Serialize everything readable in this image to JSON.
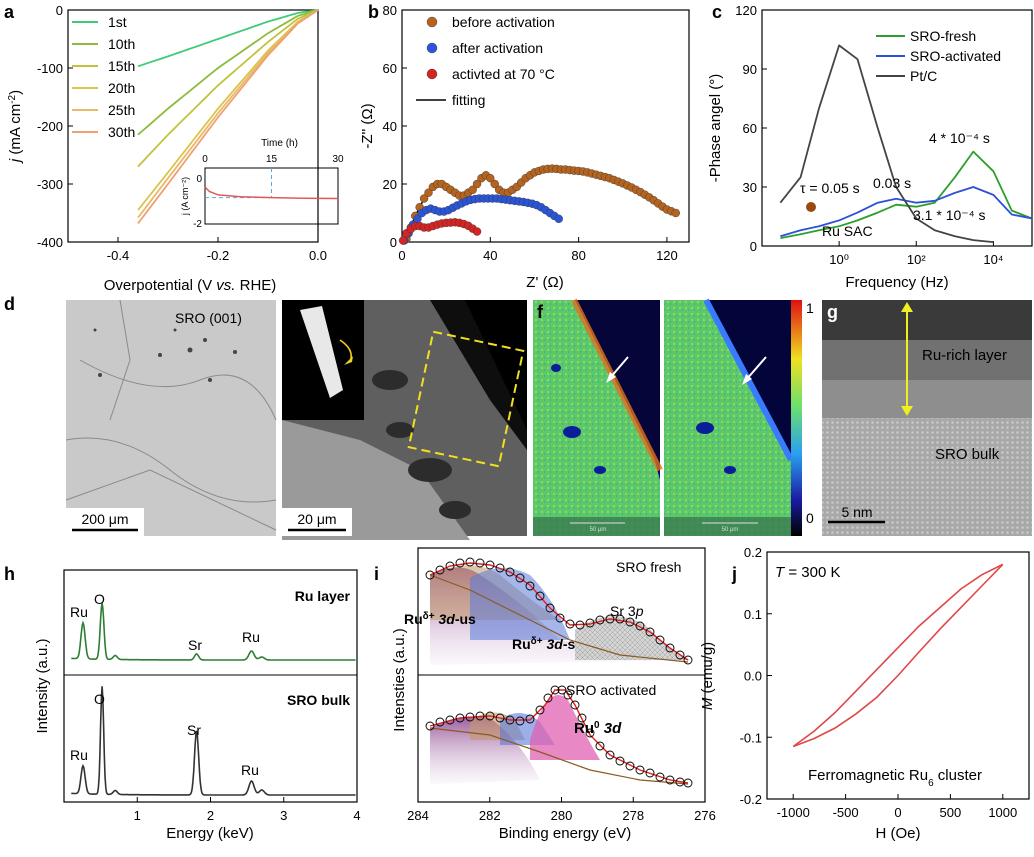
{
  "colors": {
    "a_cycles": [
      "#3dcb7a",
      "#8dbb3c",
      "#c2c23c",
      "#d9c548",
      "#e9b86a",
      "#f0a070"
    ],
    "inset_line": "#e05a5a",
    "inset_dash": "#5aa9d6",
    "b_before": "#b5641f",
    "b_after": "#2a55d6",
    "b_70": "#d42424",
    "c_fresh": "#2aa02a",
    "c_act": "#2e4fd8",
    "c_pt": "#444444",
    "c_dot": "#9a4a10",
    "h_ru": "#2e7d32",
    "h_sro": "#333333",
    "j_loop": "#e04848"
  },
  "panels": {
    "a": {
      "label": "a"
    },
    "b": {
      "label": "b"
    },
    "c": {
      "label": "c"
    },
    "d": {
      "label": "d"
    },
    "f": {
      "label": "f"
    },
    "g": {
      "label": "g"
    },
    "h": {
      "label": "h"
    },
    "i": {
      "label": "i"
    },
    "j": {
      "label": "j"
    }
  },
  "chart_data": [
    {
      "id": "a",
      "type": "line",
      "xlabel": "Overpotential (V vs. RHE)",
      "ylabel": "j (mA cm⁻²)",
      "xlim": [
        -0.5,
        0.0
      ],
      "ylim": [
        -400,
        0
      ],
      "xticks": [
        "-0.4",
        "-0.2",
        "0.0"
      ],
      "yticks": [
        "0",
        "-100",
        "-200",
        "-300",
        "-400"
      ],
      "series": [
        {
          "name": "1st",
          "x": [
            -0.36,
            -0.3,
            -0.2,
            -0.1,
            -0.04,
            0.0
          ],
          "y": [
            -97,
            -80,
            -50,
            -20,
            -5,
            0
          ]
        },
        {
          "name": "10th",
          "x": [
            -0.36,
            -0.3,
            -0.2,
            -0.1,
            -0.04,
            0.0
          ],
          "y": [
            -215,
            -170,
            -100,
            -40,
            -10,
            0
          ]
        },
        {
          "name": "15th",
          "x": [
            -0.36,
            -0.3,
            -0.2,
            -0.1,
            -0.04,
            0.0
          ],
          "y": [
            -270,
            -215,
            -130,
            -55,
            -15,
            0
          ]
        },
        {
          "name": "20th",
          "x": [
            -0.36,
            -0.3,
            -0.2,
            -0.1,
            -0.04,
            0.0
          ],
          "y": [
            -345,
            -280,
            -170,
            -70,
            -20,
            0
          ]
        },
        {
          "name": "25th",
          "x": [
            -0.36,
            -0.3,
            -0.2,
            -0.1,
            -0.04,
            0.0
          ],
          "y": [
            -358,
            -290,
            -178,
            -74,
            -22,
            0
          ]
        },
        {
          "name": "30th",
          "x": [
            -0.36,
            -0.3,
            -0.2,
            -0.1,
            -0.04,
            0.0
          ],
          "y": [
            -368,
            -300,
            -185,
            -78,
            -23,
            0
          ]
        }
      ],
      "inset": {
        "xlabel": "Time (h)",
        "ylabel": "j (A cm⁻²)",
        "xlim": [
          0,
          30
        ],
        "ylim": [
          -2,
          0.5
        ],
        "xticks": [
          "0",
          "15",
          "30"
        ],
        "yticks": [
          "0",
          "-2"
        ],
        "x": [
          0,
          1,
          3,
          8,
          15,
          22,
          30
        ],
        "y": [
          -0.35,
          -0.55,
          -0.7,
          -0.78,
          -0.82,
          -0.85,
          -0.86
        ]
      }
    },
    {
      "id": "b",
      "type": "scatter",
      "xlabel": "Z' (Ω)",
      "ylabel": "-Z'' (Ω)",
      "xlim": [
        0,
        130
      ],
      "ylim": [
        0,
        80
      ],
      "xticks": [
        "0",
        "40",
        "80",
        "120"
      ],
      "yticks": [
        "0",
        "20",
        "40",
        "60",
        "80"
      ],
      "legend": [
        "before activation",
        "after activation",
        "activted at 70 °C",
        "fitting"
      ],
      "series": [
        {
          "name": "before activation",
          "points": [
            [
              2,
              1
            ],
            [
              4,
              5
            ],
            [
              6,
              9
            ],
            [
              8,
              12
            ],
            [
              10,
              15
            ],
            [
              12,
              17
            ],
            [
              14,
              19
            ],
            [
              16,
              20
            ],
            [
              18,
              20
            ],
            [
              20,
              19
            ],
            [
              22,
              18
            ],
            [
              24,
              17
            ],
            [
              26,
              16
            ],
            [
              28,
              16
            ],
            [
              30,
              17
            ],
            [
              32,
              18
            ],
            [
              34,
              20
            ],
            [
              36,
              22
            ],
            [
              38,
              23
            ],
            [
              40,
              22
            ],
            [
              42,
              20
            ],
            [
              44,
              18
            ],
            [
              46,
              17
            ],
            [
              48,
              17
            ],
            [
              50,
              18
            ],
            [
              52,
              19
            ],
            [
              54,
              20.5
            ],
            [
              56,
              22
            ],
            [
              58,
              23
            ],
            [
              60,
              24
            ],
            [
              62,
              24.5
            ],
            [
              64,
              25
            ],
            [
              66,
              25.2
            ],
            [
              68,
              25.3
            ],
            [
              70,
              25.2
            ],
            [
              72,
              25
            ],
            [
              74,
              25
            ],
            [
              76,
              24.8
            ],
            [
              78,
              24.6
            ],
            [
              80,
              24.5
            ],
            [
              82,
              24.3
            ],
            [
              84,
              24
            ],
            [
              86,
              23.6
            ],
            [
              88,
              23.2
            ],
            [
              90,
              22.8
            ],
            [
              92,
              22.4
            ],
            [
              94,
              22
            ],
            [
              96,
              21.4
            ],
            [
              98,
              20.8
            ],
            [
              100,
              20.2
            ],
            [
              102,
              19.5
            ],
            [
              104,
              18.8
            ],
            [
              106,
              18
            ],
            [
              108,
              17.2
            ],
            [
              110,
              16.3
            ],
            [
              112,
              15.4
            ],
            [
              114,
              14.4
            ],
            [
              116,
              13.3
            ],
            [
              118,
              12.2
            ],
            [
              120,
              11.2
            ],
            [
              122,
              10.6
            ],
            [
              124,
              10
            ]
          ]
        },
        {
          "name": "after activation",
          "points": [
            [
              1,
              0.5
            ],
            [
              3,
              3
            ],
            [
              5,
              6
            ],
            [
              7,
              8
            ],
            [
              9,
              10
            ],
            [
              11,
              11
            ],
            [
              13,
              11.5
            ],
            [
              15,
              11
            ],
            [
              17,
              10.5
            ],
            [
              19,
              10.5
            ],
            [
              21,
              11
            ],
            [
              23,
              11.8
            ],
            [
              25,
              12.6
            ],
            [
              27,
              13.3
            ],
            [
              29,
              14
            ],
            [
              31,
              14.5
            ],
            [
              33,
              14.8
            ],
            [
              35,
              15
            ],
            [
              37,
              15
            ],
            [
              39,
              15
            ],
            [
              41,
              15
            ],
            [
              43,
              15
            ],
            [
              45,
              14.8
            ],
            [
              47,
              14.6
            ],
            [
              49,
              14.4
            ],
            [
              51,
              14.2
            ],
            [
              53,
              14
            ],
            [
              55,
              13.8
            ],
            [
              57,
              13.5
            ],
            [
              59,
              13.2
            ],
            [
              61,
              12.7
            ],
            [
              63,
              12
            ],
            [
              65,
              11
            ],
            [
              67,
              10
            ],
            [
              69,
              9
            ],
            [
              71,
              8
            ]
          ]
        },
        {
          "name": "activted at 70 °C",
          "points": [
            [
              0.5,
              0.5
            ],
            [
              2,
              3
            ],
            [
              4,
              4.5
            ],
            [
              6,
              5.5
            ],
            [
              8,
              5.5
            ],
            [
              10,
              5
            ],
            [
              12,
              5
            ],
            [
              14,
              5.5
            ],
            [
              16,
              6
            ],
            [
              18,
              6.4
            ],
            [
              20,
              6.6
            ],
            [
              22,
              6.7
            ],
            [
              24,
              6.8
            ],
            [
              26,
              6.6
            ],
            [
              28,
              6.2
            ],
            [
              30,
              5.6
            ],
            [
              32,
              4.6
            ],
            [
              34,
              3.6
            ]
          ]
        }
      ]
    },
    {
      "id": "c",
      "type": "line",
      "xlabel": "Frequency (Hz)",
      "ylabel": "-Phase angel (°)",
      "xscale": "log",
      "xlim": [
        0.01,
        100000
      ],
      "ylim": [
        0,
        120
      ],
      "xticks": [
        "10⁰",
        "10²",
        "10⁴"
      ],
      "yticks": [
        "0",
        "30",
        "60",
        "90",
        "120"
      ],
      "legend": [
        "SRO-fresh",
        "SRO-activated",
        "Pt/C"
      ],
      "annotations": [
        "4 * 10⁻⁴ s",
        "0.03 s",
        "τ = 0.05 s",
        "3.1 * 10⁻⁴ s",
        "Ru SAC"
      ],
      "series": [
        {
          "name": "SRO-fresh",
          "x": [
            0.03,
            0.1,
            0.3,
            1,
            3,
            10,
            30,
            100,
            300,
            1000,
            3000,
            10000,
            30000,
            100000
          ],
          "y": [
            4,
            6,
            8,
            10,
            13,
            17,
            21,
            20,
            22,
            35,
            48,
            38,
            18,
            14
          ]
        },
        {
          "name": "SRO-activated",
          "x": [
            0.03,
            0.1,
            0.3,
            1,
            3,
            10,
            30,
            100,
            300,
            1000,
            3000,
            10000,
            30000,
            100000
          ],
          "y": [
            5,
            8,
            10,
            13,
            17,
            22,
            24,
            22,
            23,
            27,
            30,
            26,
            16,
            14
          ]
        },
        {
          "name": "Pt/C",
          "x": [
            0.03,
            0.1,
            0.3,
            1,
            3,
            10,
            30,
            100,
            300,
            1000,
            3000,
            10000
          ],
          "y": [
            22,
            35,
            70,
            102,
            95,
            60,
            30,
            14,
            8,
            5,
            3,
            2
          ]
        }
      ]
    },
    {
      "id": "h",
      "type": "line",
      "xlabel": "Energy (keV)",
      "ylabel": "Intensity (a.u.)",
      "xlim": [
        0,
        4
      ],
      "xticks": [
        "1",
        "2",
        "3",
        "4"
      ],
      "series_labels": [
        "Ru layer",
        "SRO bulk"
      ],
      "peak_labels": [
        "Ru",
        "O",
        "Sr",
        "Ru",
        "O",
        "Sr",
        "Ru",
        "Ru"
      ]
    },
    {
      "id": "i",
      "type": "line",
      "xlabel": "Binding energy (eV)",
      "ylabel": "Intensties (a.u.)",
      "xlim": [
        284,
        276
      ],
      "xticks": [
        "284",
        "282",
        "280",
        "278",
        "276"
      ],
      "top_labels": [
        "SRO fresh",
        "Ruδ+ 3d-us",
        "Ruδ+ 3d-s",
        "Sr 3p"
      ],
      "bottom_labels": [
        "SRO activated",
        "Ru⁰ 3d"
      ]
    },
    {
      "id": "j",
      "type": "line",
      "xlabel": "H (Oe)",
      "ylabel": "M (emu/g)",
      "xlim": [
        -1250,
        1250
      ],
      "ylim": [
        -0.2,
        0.2
      ],
      "xticks": [
        "-1000",
        "-500",
        "0",
        "500",
        "1000"
      ],
      "yticks": [
        "0.2",
        "0.1",
        "0.0",
        "-0.1",
        "-0.2"
      ],
      "title": "T = 300 K",
      "caption": "Ferromagnetic Ru₆ cluster",
      "upper": {
        "x": [
          -1000,
          -800,
          -600,
          -400,
          -200,
          0,
          200,
          400,
          600,
          800,
          1000
        ],
        "y": [
          -0.115,
          -0.09,
          -0.06,
          -0.025,
          0.01,
          0.045,
          0.08,
          0.11,
          0.14,
          0.163,
          0.18
        ]
      },
      "lower": {
        "x": [
          -1000,
          -800,
          -600,
          -400,
          -200,
          0,
          200,
          400,
          600,
          800,
          1000
        ],
        "y": [
          -0.115,
          -0.102,
          -0.085,
          -0.062,
          -0.035,
          0.0,
          0.038,
          0.075,
          0.11,
          0.145,
          0.18
        ]
      }
    }
  ],
  "images": {
    "d_left": {
      "scale": "200 μm",
      "label": "SRO (001)"
    },
    "d_right": {
      "scale": "20 μm"
    },
    "f_scale": "50 μm",
    "f_colorbar": {
      "max": "1",
      "min": "0"
    },
    "g": {
      "top": "Ru-rich layer",
      "bottom": "SRO bulk",
      "scale": "5 nm"
    }
  }
}
